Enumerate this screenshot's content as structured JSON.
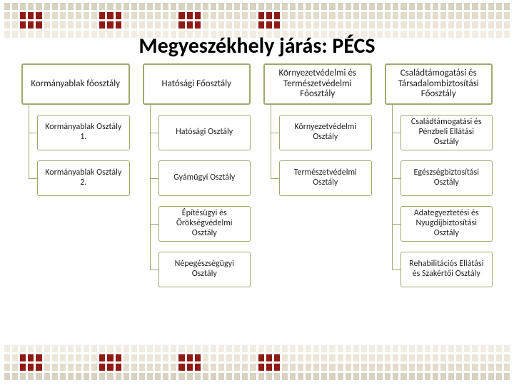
{
  "title": {
    "text": "Megyeszékhely járás: PÉCS",
    "fontsize": 30
  },
  "deco": {
    "colors_light": [
      "#d8d2c0",
      "#e3dccc",
      "#ece6d8",
      "#f1ede3"
    ],
    "color_accent": "#8f1a14",
    "n_blocks": 4
  },
  "diagram": {
    "header_border_width": 2,
    "child_border_width": 1,
    "columns": [
      {
        "header": "Kormányablak főosztály",
        "color": "#9fa86f",
        "children": [
          "Kormányablak Osztály 1.",
          "Kormányablak Osztály 2."
        ]
      },
      {
        "header": "Hatósági Főosztály",
        "color": "#9fa86f",
        "children": [
          "Hatósági Osztály",
          "Gyámügyi Osztály",
          "Építésügyi és Örökségvédelmi Osztály",
          "Népegészségügyi Osztály"
        ]
      },
      {
        "header": "Környezetvédelmi és Természetvédelmi Főosztály",
        "color": "#9fa86f",
        "children": [
          "Környezetvédelmi Osztály",
          "Természetvédelmi Osztály"
        ]
      },
      {
        "header": "Családtámogatási és Társadalombiztosítási Főosztály",
        "color": "#9fa86f",
        "children": [
          "Családtámogatási és Pénzbeli Ellátási Osztály",
          "Egészségbiztosítási Osztály",
          "Adategyeztetési és Nyugdíjbiztosítási Osztály",
          "Rehabilitációs Ellátási és Szakértői Osztály"
        ]
      }
    ]
  }
}
